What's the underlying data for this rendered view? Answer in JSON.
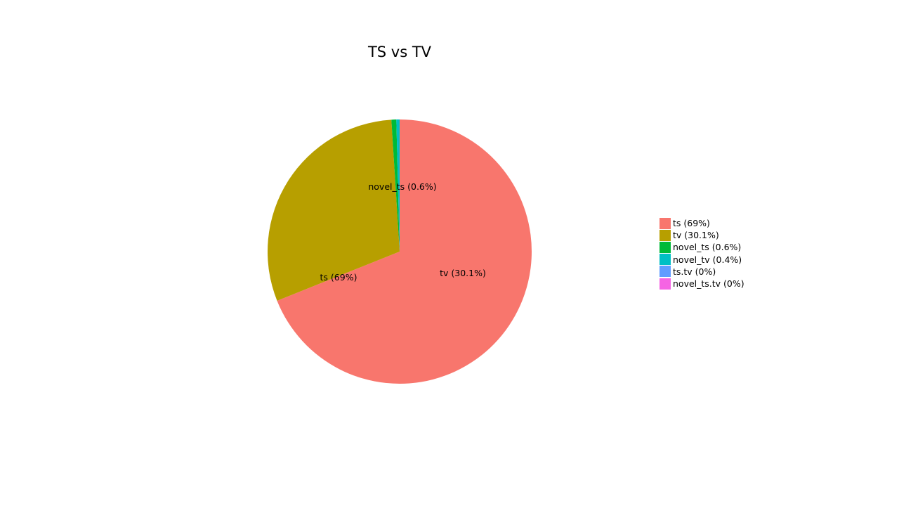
{
  "chart_data": {
    "type": "pie",
    "title": "TS vs TV",
    "start_angle": "12 o'clock",
    "direction": "clockwise",
    "slices": [
      {
        "label": "ts (69%)",
        "category": "ts",
        "value": 69.0,
        "color": "#F8766D"
      },
      {
        "label": "tv (30.1%)",
        "category": "tv",
        "value": 30.1,
        "color": "#B79F00"
      },
      {
        "label": "novel_ts (0.6%)",
        "category": "novel_ts",
        "value": 0.6,
        "color": "#00BA38"
      },
      {
        "label": "novel_tv (0.4%)",
        "category": "novel_tv",
        "value": 0.4,
        "color": "#00BFC4"
      },
      {
        "label": "ts.tv (0%)",
        "category": "ts.tv",
        "value": 0.0,
        "color": "#619CFF"
      },
      {
        "label": "novel_ts.tv (0%)",
        "category": "novel_ts.tv",
        "value": 0.0,
        "color": "#F564E3"
      }
    ],
    "slice_labels": [
      "ts (69%)",
      "tv (30.1%)",
      "novel_ts (0.6%)"
    ],
    "legend_position": "right"
  }
}
